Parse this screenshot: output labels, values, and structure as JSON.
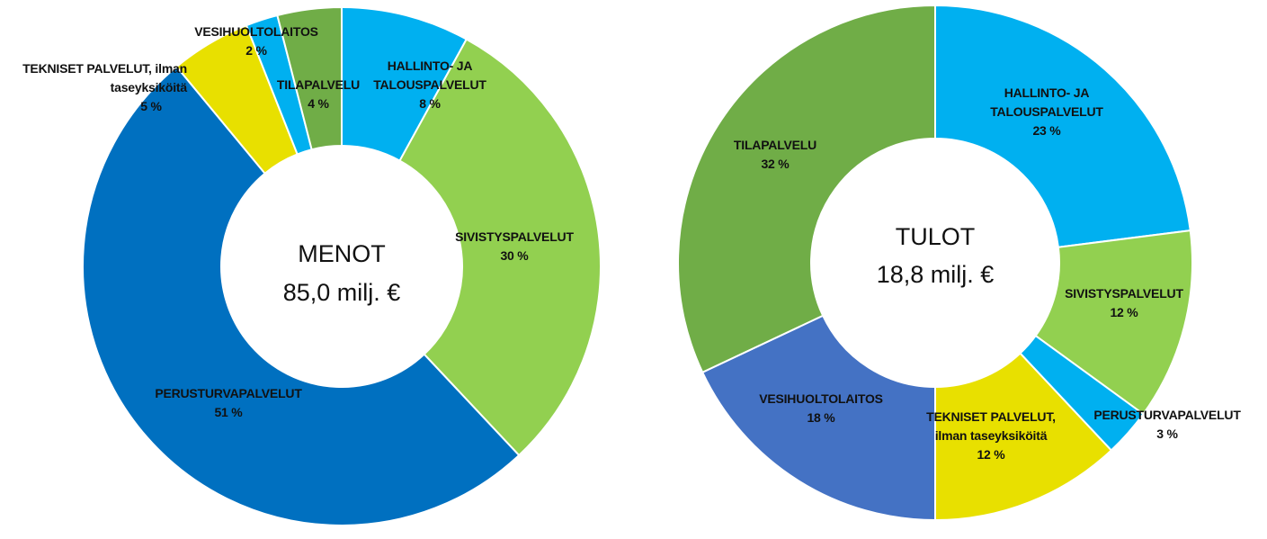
{
  "chart_data": [
    {
      "type": "pie",
      "center_label": "MENOT",
      "center_total": "85,0 milj. €",
      "slices": [
        {
          "label": [
            "HALLINTO- JA",
            "TALOUSPALVELUT"
          ],
          "value": 8,
          "value_label": "8 %",
          "color": "#00b0f0"
        },
        {
          "label": [
            "SIVISTYSPALVELUT"
          ],
          "value": 30,
          "value_label": "30 %",
          "color": "#92d050"
        },
        {
          "label": [
            "PERUSTURVAPALVELUT"
          ],
          "value": 51,
          "value_label": "51 %",
          "color": "#0070c0"
        },
        {
          "label": [
            "TEKNISET PALVELUT, ilman",
            "taseyksiköitä"
          ],
          "value": 5,
          "value_label": "5 %",
          "color": "#e8e000"
        },
        {
          "label": [
            "VESIHUOLTOLAITOS"
          ],
          "value": 2,
          "value_label": "2 %",
          "color": "#00b0f0"
        },
        {
          "label": [
            "TILAPALVELU"
          ],
          "value": 4,
          "value_label": "4 %",
          "color": "#70ad47"
        }
      ]
    },
    {
      "type": "pie",
      "center_label": "TULOT",
      "center_total": "18,8 milj. €",
      "slices": [
        {
          "label": [
            "HALLINTO- JA",
            "TALOUSPALVELUT"
          ],
          "value": 23,
          "value_label": "23 %",
          "color": "#00b0f0"
        },
        {
          "label": [
            "SIVISTYSPALVELUT"
          ],
          "value": 12,
          "value_label": "12 %",
          "color": "#92d050"
        },
        {
          "label": [
            "PERUSTURVAPALVELUT"
          ],
          "value": 3,
          "value_label": "3 %",
          "color": "#00b0f0"
        },
        {
          "label": [
            "TEKNISET PALVELUT,",
            "ilman taseyksiköitä"
          ],
          "value": 12,
          "value_label": "12 %",
          "color": "#e8e000"
        },
        {
          "label": [
            "VESIHUOLTOLAITOS"
          ],
          "value": 18,
          "value_label": "18 %",
          "color": "#4472c4"
        },
        {
          "label": [
            "TILAPALVELU"
          ],
          "value": 32,
          "value_label": "32 %",
          "color": "#70ad47"
        }
      ]
    }
  ]
}
